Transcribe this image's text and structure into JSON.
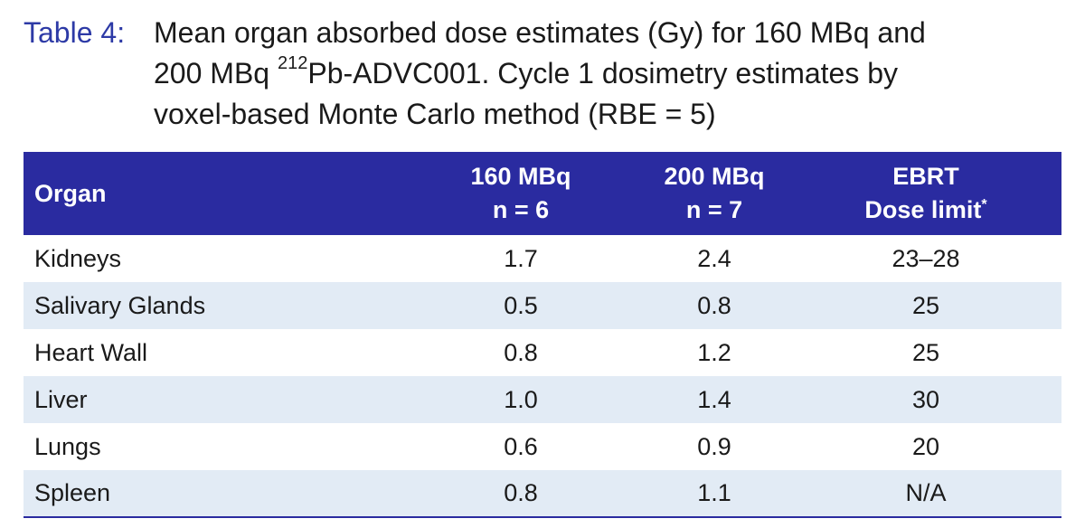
{
  "caption": {
    "label": "Table 4:",
    "text_line1": "Mean organ absorbed dose estimates (Gy) for 160 MBq and",
    "text_line2_pre": "200 MBq ",
    "text_line2_sup": "212",
    "text_line2_post": "Pb-ADVC001. Cycle 1 dosimetry estimates by",
    "text_line3": "voxel-based Monte Carlo method (RBE = 5)"
  },
  "table": {
    "header": {
      "organ": "Organ",
      "col160_line1": "160 MBq",
      "col160_line2": "n = 6",
      "col200_line1": "200 MBq",
      "col200_line2": "n = 7",
      "ebrt_line1": "EBRT",
      "ebrt_line2": "Dose limit",
      "ebrt_mark": "*"
    },
    "rows": [
      {
        "organ": "Kidneys",
        "d160": "1.7",
        "d200": "2.4",
        "ebrt": "23–28"
      },
      {
        "organ": "Salivary Glands",
        "d160": "0.5",
        "d200": "0.8",
        "ebrt": "25"
      },
      {
        "organ": "Heart Wall",
        "d160": "0.8",
        "d200": "1.2",
        "ebrt": "25"
      },
      {
        "organ": "Liver",
        "d160": "1.0",
        "d200": "1.4",
        "ebrt": "30"
      },
      {
        "organ": "Lungs",
        "d160": "0.6",
        "d200": "0.9",
        "ebrt": "20"
      },
      {
        "organ": "Spleen",
        "d160": "0.8",
        "d200": "1.1",
        "ebrt": "N/A"
      }
    ]
  },
  "colors": {
    "header_bg": "#2a2ba0",
    "caption_label": "#2d3aa6",
    "stripe_bg": "#e2ebf5"
  }
}
